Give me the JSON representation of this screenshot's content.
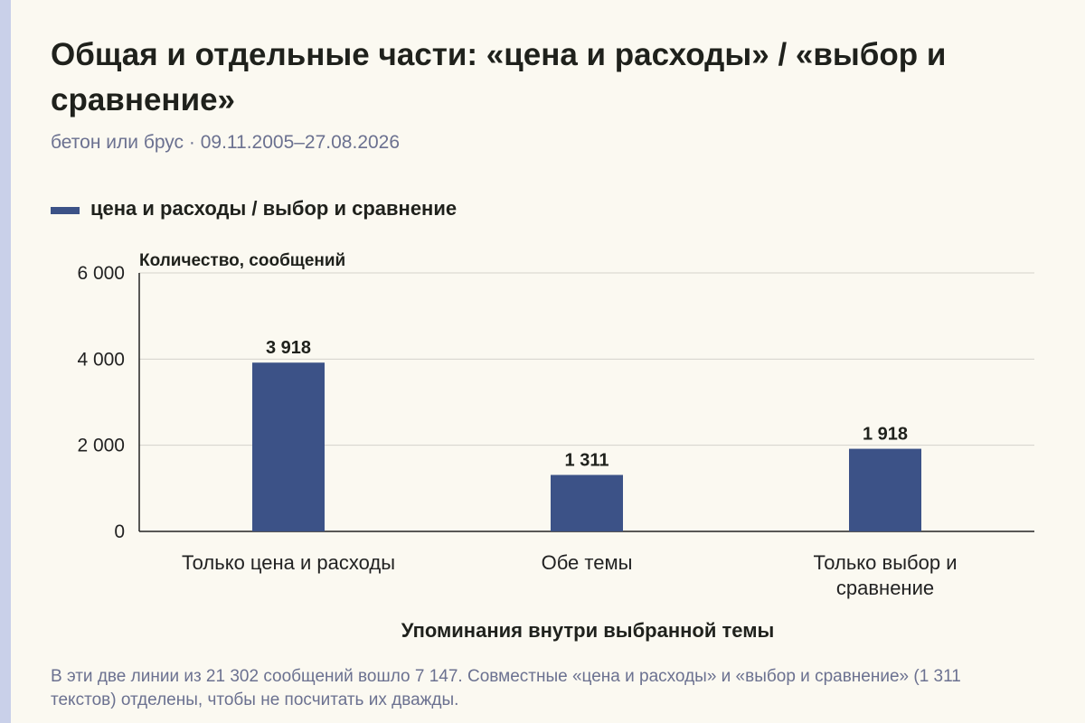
{
  "header": {
    "title": "Общая и отдельные части: «цена и расходы» / «выбор и сравнение»",
    "subtitle": "бетон или брус · 09.11.2005–27.08.2026"
  },
  "legend": {
    "label": "цена и расходы / выбор и сравнение",
    "color": "#3c5287"
  },
  "footnote": "В эти две линии из 21 302 сообщений вошло 7 147. Совместные «цена и расходы» и «выбор и сравнение» (1 311 текстов) отделены, чтобы не посчитать их дважды.",
  "chart_data": {
    "type": "bar",
    "title": "Общая и отдельные части: «цена и расходы» / «выбор и сравнение»",
    "subtitle": "бетон или брус · 09.11.2005–27.08.2026",
    "ylabel": "Количество, сообщений",
    "xlabel": "Упоминания внутри выбранной темы",
    "ylim": [
      0,
      6000
    ],
    "yticks": [
      0,
      2000,
      4000,
      6000
    ],
    "ytick_labels": [
      "0",
      "2 000",
      "4 000",
      "6 000"
    ],
    "grid": true,
    "categories": [
      [
        "Только цена и расходы"
      ],
      [
        "Обе темы"
      ],
      [
        "Только выбор и",
        "сравнение"
      ]
    ],
    "series": [
      {
        "name": "цена и расходы / выбор и сравнение",
        "values": [
          3918,
          1311,
          1918
        ],
        "labels": [
          "3 918",
          "1 311",
          "1 918"
        ],
        "color": "#3c5287"
      }
    ]
  }
}
